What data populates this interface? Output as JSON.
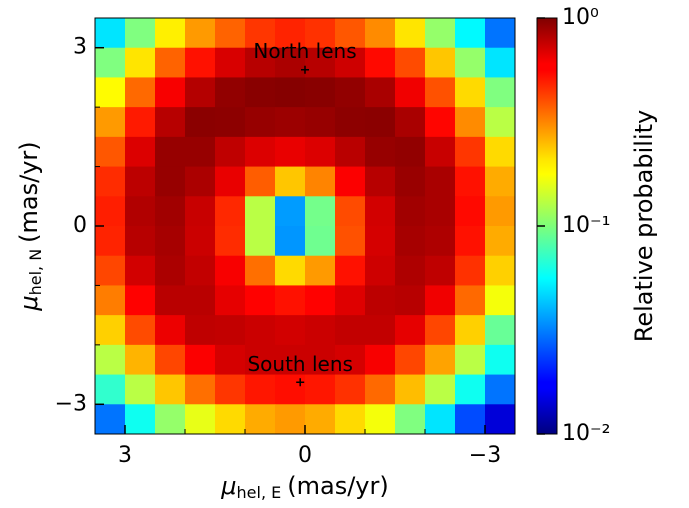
{
  "chart_data": {
    "type": "heatmap",
    "xlabel": {
      "symbol": "μ",
      "subscript": "hel, E",
      "unit": "(mas/yr)"
    },
    "ylabel": {
      "symbol": "μ",
      "subscript": "hel, N",
      "unit": "(mas/yr)"
    },
    "colorbar_label": "Relative probability",
    "xlim": [
      3.5,
      -3.5
    ],
    "ylim": [
      -3.5,
      3.5
    ],
    "xticks": [
      3,
      0,
      {
        "value": -3,
        "label": "−3"
      }
    ],
    "xminor": [
      2,
      1,
      -1,
      -2
    ],
    "yticks": [
      {
        "value": -3,
        "label": "−3"
      },
      0,
      3
    ],
    "yminor": [
      -2,
      -1,
      1,
      2
    ],
    "clim": [
      0.01,
      1
    ],
    "log_color": true,
    "colormap": "jet",
    "cticks": [
      {
        "value": 1,
        "label": "10⁰"
      },
      {
        "value": 0.1,
        "label": "10⁻¹"
      },
      {
        "value": 0.01,
        "label": "10⁻²"
      }
    ],
    "x": [
      3.25,
      2.75,
      2.25,
      1.75,
      1.25,
      0.75,
      0.25,
      -0.25,
      -0.75,
      -1.25,
      -1.75,
      -2.25,
      -2.75,
      -3.25
    ],
    "y": [
      3.25,
      2.75,
      2.25,
      1.75,
      1.25,
      0.75,
      0.25,
      -0.25,
      -0.75,
      -1.25,
      -1.75,
      -2.25,
      -2.75,
      -3.25
    ],
    "values": [
      [
        0.05,
        0.1,
        0.19,
        0.28,
        0.36,
        0.44,
        0.48,
        0.45,
        0.38,
        0.3,
        0.2,
        0.11,
        0.055,
        0.03
      ],
      [
        0.1,
        0.2,
        0.36,
        0.52,
        0.67,
        0.78,
        0.82,
        0.78,
        0.7,
        0.54,
        0.4,
        0.23,
        0.11,
        0.05
      ],
      [
        0.18,
        0.35,
        0.58,
        0.79,
        0.92,
        0.96,
        0.97,
        0.96,
        0.92,
        0.83,
        0.6,
        0.39,
        0.21,
        0.1
      ],
      [
        0.28,
        0.5,
        0.78,
        0.95,
        0.94,
        0.9,
        0.88,
        0.9,
        0.94,
        0.95,
        0.83,
        0.55,
        0.3,
        0.13
      ],
      [
        0.38,
        0.66,
        0.9,
        0.9,
        0.75,
        0.66,
        0.62,
        0.66,
        0.77,
        0.9,
        0.92,
        0.72,
        0.44,
        0.21
      ],
      [
        0.46,
        0.76,
        0.9,
        0.82,
        0.62,
        0.37,
        0.23,
        0.31,
        0.57,
        0.78,
        0.89,
        0.83,
        0.52,
        0.26
      ],
      [
        0.49,
        0.8,
        0.86,
        0.72,
        0.47,
        0.13,
        0.036,
        0.095,
        0.4,
        0.69,
        0.86,
        0.83,
        0.54,
        0.28
      ],
      [
        0.48,
        0.78,
        0.84,
        0.71,
        0.46,
        0.13,
        0.035,
        0.093,
        0.39,
        0.68,
        0.84,
        0.81,
        0.52,
        0.26
      ],
      [
        0.41,
        0.69,
        0.82,
        0.74,
        0.58,
        0.34,
        0.21,
        0.28,
        0.52,
        0.7,
        0.81,
        0.75,
        0.45,
        0.22
      ],
      [
        0.32,
        0.56,
        0.77,
        0.77,
        0.63,
        0.56,
        0.52,
        0.56,
        0.65,
        0.76,
        0.78,
        0.6,
        0.35,
        0.17
      ],
      [
        0.22,
        0.4,
        0.61,
        0.75,
        0.74,
        0.71,
        0.69,
        0.71,
        0.74,
        0.74,
        0.63,
        0.41,
        0.22,
        0.09
      ],
      [
        0.13,
        0.25,
        0.41,
        0.57,
        0.68,
        0.71,
        0.71,
        0.71,
        0.68,
        0.58,
        0.41,
        0.27,
        0.13,
        0.06
      ],
      [
        0.07,
        0.13,
        0.23,
        0.34,
        0.44,
        0.51,
        0.53,
        0.51,
        0.45,
        0.35,
        0.24,
        0.13,
        0.06,
        0.03
      ],
      [
        0.03,
        0.06,
        0.11,
        0.16,
        0.21,
        0.26,
        0.28,
        0.26,
        0.21,
        0.17,
        0.1,
        0.05,
        0.025,
        0.015
      ]
    ],
    "annotations": [
      {
        "text": "North lens",
        "x": 0,
        "y": 2.63
      },
      {
        "text": "South lens",
        "x": 0.08,
        "y": -2.63
      }
    ]
  }
}
